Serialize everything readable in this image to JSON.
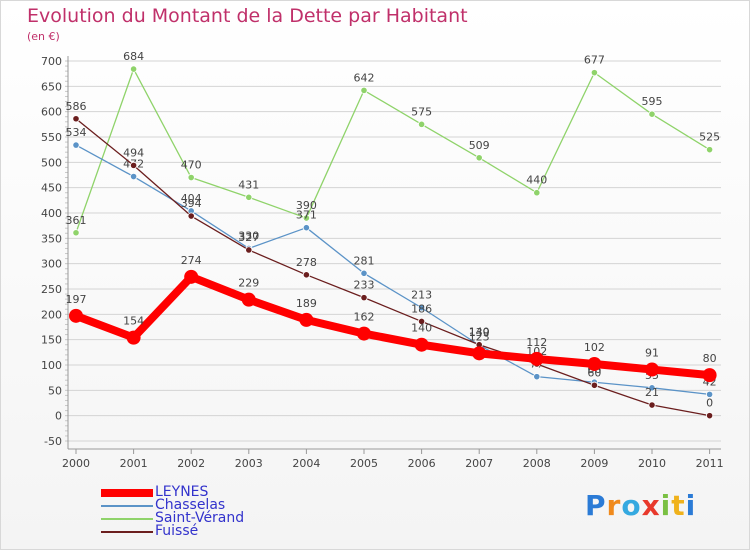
{
  "chart_data": {
    "type": "line",
    "title": "Evolution du Montant de la Dette par Habitant",
    "unit_label": "(en €)",
    "xlabel": "",
    "ylabel": "",
    "ylim": [
      -50,
      700
    ],
    "yticks": [
      -50,
      0,
      50,
      100,
      150,
      200,
      250,
      300,
      350,
      400,
      450,
      500,
      550,
      600,
      650,
      700
    ],
    "categories": [
      "2000",
      "2001",
      "2002",
      "2003",
      "2004",
      "2005",
      "2006",
      "2007",
      "2008",
      "2009",
      "2010",
      "2011"
    ],
    "grid": "horizontal",
    "legend_position": "bottom-left",
    "series": [
      {
        "name": "Saint-Vérand",
        "color": "#8fd36a",
        "values": [
          361,
          684,
          470,
          431,
          390,
          642,
          575,
          509,
          440,
          677,
          595,
          525
        ]
      },
      {
        "name": "Chasselas",
        "color": "#5b93c7",
        "values": [
          534,
          472,
          404,
          330,
          371,
          281,
          213,
          139,
          77,
          66,
          55,
          42
        ]
      },
      {
        "name": "Fuissé",
        "color": "#6b1e1e",
        "values": [
          586,
          494,
          394,
          327,
          278,
          233,
          186,
          140,
          102,
          60,
          21,
          0
        ]
      },
      {
        "name": "LEYNES",
        "color": "#ff0000",
        "values": [
          197,
          154,
          274,
          229,
          189,
          162,
          140,
          123,
          112,
          102,
          91,
          80
        ]
      }
    ],
    "legend_order": [
      "LEYNES",
      "Chasselas",
      "Saint-Vérand",
      "Fuissé"
    ]
  },
  "brand": {
    "letters": [
      "P",
      "r",
      "o",
      "x",
      "i",
      "t",
      "i"
    ],
    "colors": [
      "#2b7bd6",
      "#f08a1c",
      "#35a9e0",
      "#e8392c",
      "#7ac043",
      "#f0b21c",
      "#2b7bd6"
    ]
  }
}
